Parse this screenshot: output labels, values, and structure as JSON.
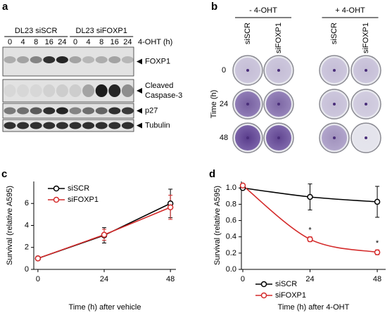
{
  "panel_a": {
    "panel_label": "a",
    "groups": [
      "DL23 siSCR",
      "DL23 siFOXP1"
    ],
    "treatment_label": "4-OHT (h)",
    "times": [
      "0",
      "4",
      "8",
      "16",
      "24",
      "0",
      "4",
      "8",
      "16",
      "24"
    ],
    "bands": [
      [
        "FOXP1"
      ],
      [
        "Cleaved",
        "Caspase-3"
      ],
      [
        "p27"
      ],
      [
        "Tubulin"
      ]
    ]
  },
  "panel_b": {
    "panel_label": "b",
    "conditions": [
      "- 4-OHT",
      "+ 4-OHT"
    ],
    "columns": [
      "siSCR",
      "siFOXP1",
      "siSCR",
      "siFOXP1"
    ],
    "rows": [
      "0",
      "24",
      "48"
    ],
    "row_axis_label": "Time (h)"
  },
  "chart_data": [
    {
      "type": "line",
      "panel_label": "c",
      "x_label": "Time (h) after vehicle",
      "y_label": "Survival (relative A595)",
      "x": [
        0,
        24,
        48
      ],
      "xlim": [
        -1.5,
        50
      ],
      "xticks": [
        0,
        24,
        48
      ],
      "ylim": [
        0,
        8
      ],
      "yticks": [
        0,
        2,
        4,
        6
      ],
      "legend": "upper left",
      "smooth": false,
      "series": [
        {
          "name": "siSCR",
          "color": "#000000",
          "values": [
            1,
            3.1,
            6.0
          ],
          "errors": [
            0.1,
            0.7,
            1.3
          ]
        },
        {
          "name": "siFOXP1",
          "color": "#d42a2a",
          "values": [
            1,
            3.15,
            5.65
          ],
          "errors": [
            0.1,
            0.5,
            1.1
          ]
        }
      ]
    },
    {
      "type": "line",
      "panel_label": "d",
      "x_label": "Time (h) after 4-OHT",
      "y_label": "Survival (relative A595)",
      "x": [
        0,
        24,
        48
      ],
      "xlim": [
        -0.5,
        51
      ],
      "xticks": [
        0,
        24,
        48
      ],
      "ylim": [
        0,
        1.08
      ],
      "yticks": [
        {
          "value": 0,
          "label": "0.0"
        },
        {
          "value": 0.2,
          "label": "0.2"
        },
        {
          "value": 0.4,
          "label": "0.4"
        },
        {
          "value": 0.6,
          "label": "0.6"
        },
        {
          "value": 0.8,
          "label": "0.8"
        },
        {
          "value": 1,
          "label": "1.0"
        }
      ],
      "legend": "lower left",
      "smooth": true,
      "series": [
        {
          "name": "siSCR",
          "color": "#000000",
          "values": [
            1.0,
            0.89,
            0.83
          ],
          "errors": [
            0,
            0.16,
            0.19
          ]
        },
        {
          "name": "siFOXP1",
          "color": "#d42a2a",
          "values": [
            1.03,
            0.37,
            0.21
          ],
          "errors": [
            0.02,
            0.03,
            0.03
          ]
        }
      ],
      "annotations": [
        {
          "text": "*",
          "x": 24
        },
        {
          "text": "*",
          "x": 48
        }
      ]
    }
  ]
}
